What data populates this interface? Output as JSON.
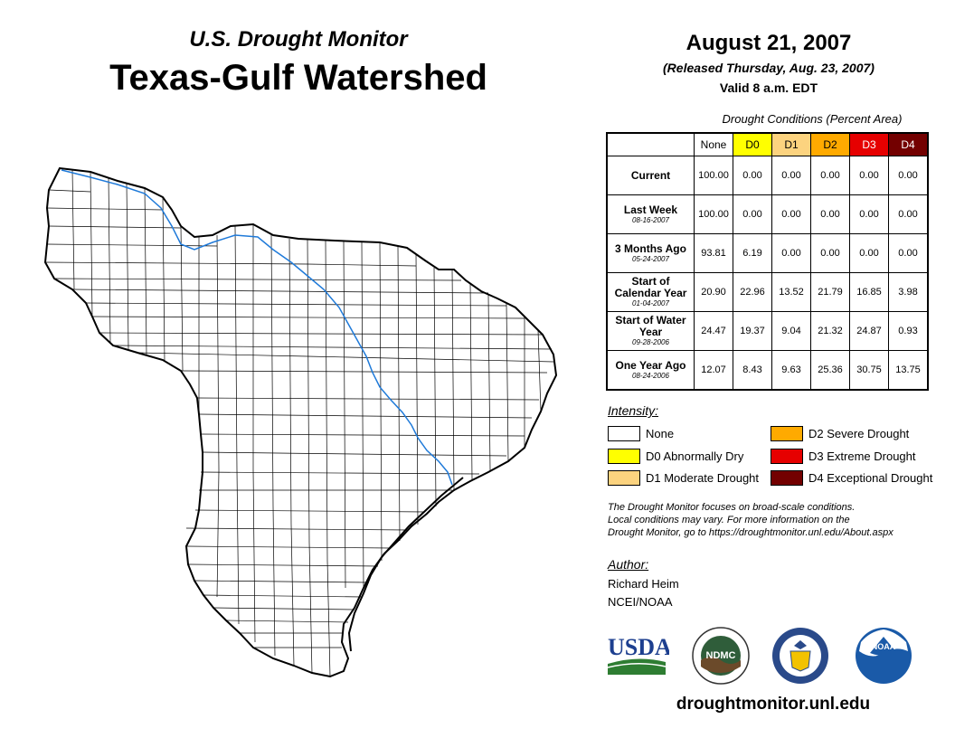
{
  "header": {
    "supertitle": "U.S. Drought Monitor",
    "title": "Texas-Gulf Watershed",
    "date": "August 21, 2007",
    "released": "(Released Thursday, Aug. 23, 2007)",
    "valid": "Valid 8 a.m. EDT"
  },
  "table": {
    "caption": "Drought Conditions (Percent Area)",
    "columns": [
      "None",
      "D0",
      "D1",
      "D2",
      "D3",
      "D4"
    ],
    "column_colors": [
      "#ffffff",
      "#ffff00",
      "#fcd37f",
      "#ffaa00",
      "#e60000",
      "#730000"
    ],
    "column_text_colors": [
      "#000000",
      "#000000",
      "#000000",
      "#000000",
      "#ffffff",
      "#ffffff"
    ],
    "rows": [
      {
        "label": "Current",
        "date": "",
        "values": [
          "100.00",
          "0.00",
          "0.00",
          "0.00",
          "0.00",
          "0.00"
        ]
      },
      {
        "label": "Last Week",
        "date": "08-16-2007",
        "values": [
          "100.00",
          "0.00",
          "0.00",
          "0.00",
          "0.00",
          "0.00"
        ]
      },
      {
        "label": "3 Months Ago",
        "date": "05-24-2007",
        "values": [
          "93.81",
          "6.19",
          "0.00",
          "0.00",
          "0.00",
          "0.00"
        ]
      },
      {
        "label": "Start of Calendar Year",
        "date": "01-04-2007",
        "values": [
          "20.90",
          "22.96",
          "13.52",
          "21.79",
          "16.85",
          "3.98"
        ]
      },
      {
        "label": "Start of Water Year",
        "date": "09-28-2006",
        "values": [
          "24.47",
          "19.37",
          "9.04",
          "21.32",
          "24.87",
          "0.93"
        ]
      },
      {
        "label": "One Year Ago",
        "date": "08-24-2006",
        "values": [
          "12.07",
          "8.43",
          "9.63",
          "25.36",
          "30.75",
          "13.75"
        ]
      }
    ]
  },
  "legend": {
    "heading": "Intensity:",
    "items": [
      {
        "label": "None",
        "color": "#ffffff"
      },
      {
        "label": "D0 Abnormally Dry",
        "color": "#ffff00"
      },
      {
        "label": "D1 Moderate Drought",
        "color": "#fcd37f"
      },
      {
        "label": "D2 Severe Drought",
        "color": "#ffaa00"
      },
      {
        "label": "D3 Extreme Drought",
        "color": "#e60000"
      },
      {
        "label": "D4 Exceptional Drought",
        "color": "#730000"
      }
    ]
  },
  "note": {
    "line1": "The Drought Monitor focuses on broad-scale conditions.",
    "line2": "Local conditions may vary. For more information on the",
    "line3": "Drought Monitor, go to https://droughtmonitor.unl.edu/About.aspx"
  },
  "author": {
    "heading": "Author:",
    "name": "Richard Heim",
    "org": "NCEI/NOAA"
  },
  "logos": {
    "usda": "USDA",
    "ndmc": "NDMC",
    "noaa": "NOAA"
  },
  "footer": {
    "url": "droughtmonitor.unl.edu"
  },
  "colors": {
    "river": "#1f7ad9",
    "usda_blue": "#1d3f8f",
    "usda_green": "#2e7d32",
    "ndmc_green": "#2f5d3a",
    "doc_blue": "#2a4a8a",
    "noaa_blue": "#1a5aa8"
  }
}
